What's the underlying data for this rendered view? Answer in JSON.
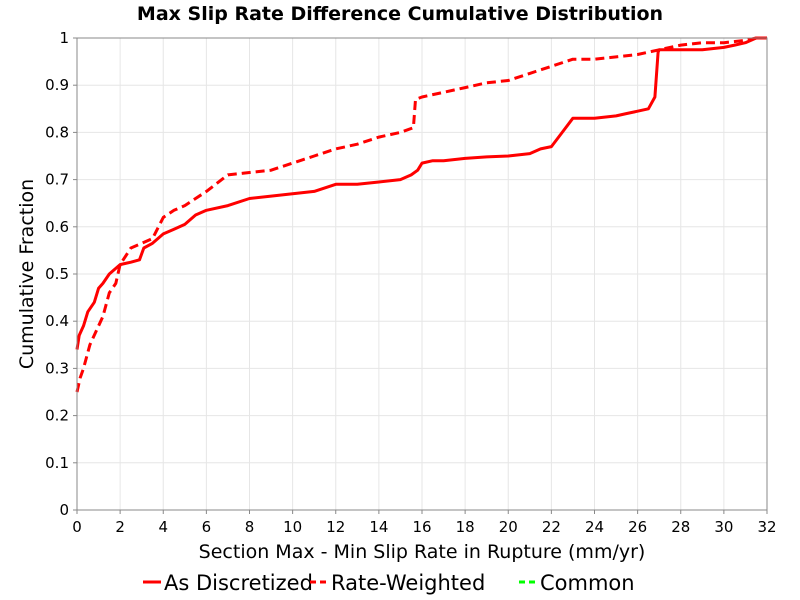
{
  "chart_data": {
    "type": "line",
    "title": "Max Slip Rate Difference Cumulative Distribution",
    "xlabel": "Section Max - Min Slip Rate in Rupture (mm/yr)",
    "ylabel": "Cumulative Fraction",
    "xlim": [
      0,
      32
    ],
    "ylim": [
      0,
      1
    ],
    "x_ticks": [
      "0",
      "2",
      "4",
      "6",
      "8",
      "10",
      "12",
      "14",
      "16",
      "18",
      "20",
      "22",
      "24",
      "26",
      "28",
      "30",
      "32"
    ],
    "y_ticks": [
      "0",
      "0.1",
      "0.2",
      "0.3",
      "0.4",
      "0.5",
      "0.6",
      "0.7",
      "0.8",
      "0.9",
      "1"
    ],
    "grid": true,
    "legend_position": "bottom",
    "series": [
      {
        "name": "As Discretized",
        "color": "#ff0000",
        "dash": "solid",
        "x": [
          0,
          0.1,
          0.3,
          0.5,
          0.8,
          1.0,
          1.2,
          1.5,
          2.0,
          2.5,
          2.9,
          3.1,
          3.5,
          4.0,
          4.5,
          5.0,
          5.5,
          6.0,
          7.0,
          8.0,
          9.0,
          10.0,
          11.0,
          12.0,
          13.0,
          14.0,
          15.0,
          15.5,
          15.8,
          16.0,
          16.5,
          17.0,
          18.0,
          19.0,
          20.0,
          21.0,
          21.5,
          22.0,
          22.5,
          23.0,
          24.0,
          25.0,
          25.5,
          26.0,
          26.5,
          26.8,
          26.95,
          27.0,
          28.0,
          29.0,
          30.0,
          30.5,
          31.0,
          31.5,
          32.0
        ],
        "y": [
          0.34,
          0.37,
          0.39,
          0.42,
          0.44,
          0.47,
          0.48,
          0.5,
          0.52,
          0.525,
          0.53,
          0.555,
          0.565,
          0.585,
          0.595,
          0.605,
          0.625,
          0.635,
          0.645,
          0.66,
          0.665,
          0.67,
          0.675,
          0.69,
          0.69,
          0.695,
          0.7,
          0.71,
          0.72,
          0.735,
          0.74,
          0.74,
          0.745,
          0.748,
          0.75,
          0.755,
          0.765,
          0.77,
          0.8,
          0.83,
          0.83,
          0.835,
          0.84,
          0.845,
          0.85,
          0.875,
          0.97,
          0.975,
          0.975,
          0.975,
          0.98,
          0.985,
          0.99,
          1.0,
          1.0
        ]
      },
      {
        "name": "Rate-Weighted",
        "color": "#ff0000",
        "dash": "dashed",
        "x": [
          0,
          0.15,
          0.3,
          0.6,
          0.9,
          1.2,
          1.5,
          1.8,
          2.0,
          2.5,
          3.0,
          3.5,
          4.0,
          4.5,
          5.0,
          5.5,
          6.0,
          7.0,
          8.0,
          9.0,
          10.0,
          11.0,
          12.0,
          13.0,
          14.0,
          15.0,
          15.6,
          15.7,
          16.0,
          17.0,
          18.0,
          19.0,
          20.0,
          21.0,
          22.0,
          23.0,
          24.0,
          25.0,
          26.0,
          27.0,
          28.0,
          29.0,
          30.0,
          31.0,
          31.5,
          32.0
        ],
        "y": [
          0.25,
          0.28,
          0.3,
          0.35,
          0.38,
          0.41,
          0.46,
          0.48,
          0.52,
          0.555,
          0.565,
          0.575,
          0.62,
          0.635,
          0.645,
          0.66,
          0.675,
          0.71,
          0.715,
          0.72,
          0.735,
          0.75,
          0.765,
          0.775,
          0.79,
          0.8,
          0.81,
          0.87,
          0.875,
          0.885,
          0.895,
          0.905,
          0.91,
          0.925,
          0.94,
          0.955,
          0.955,
          0.96,
          0.965,
          0.975,
          0.985,
          0.99,
          0.99,
          0.995,
          1.0,
          1.0
        ]
      },
      {
        "name": "Common",
        "color": "#00ff00",
        "dash": "dashed",
        "x": [],
        "y": []
      }
    ]
  }
}
